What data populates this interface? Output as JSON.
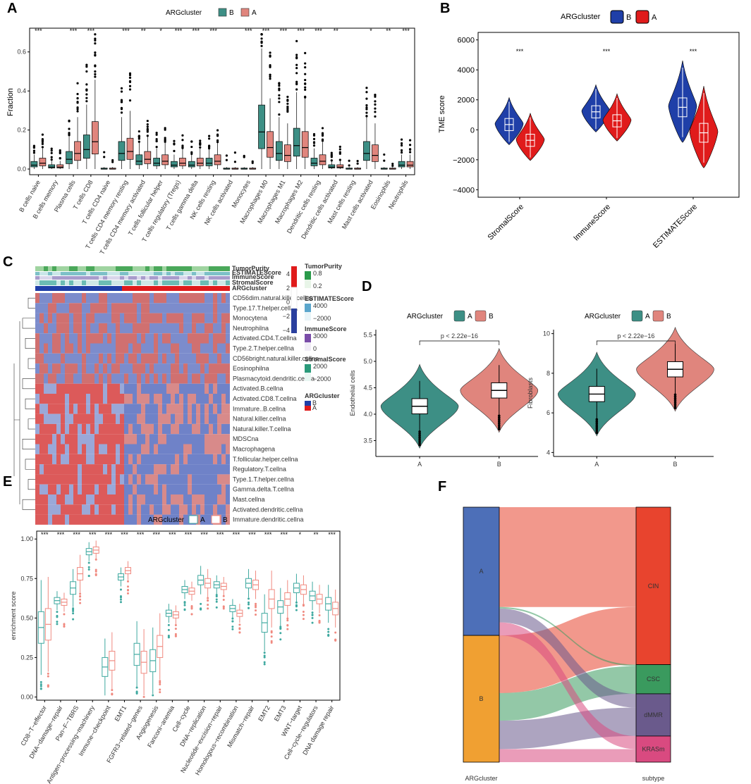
{
  "chart_data": [
    {
      "panel": "A",
      "type": "box",
      "legend_title": "ARGcluster",
      "groups": [
        "B",
        "A"
      ],
      "colors": {
        "B": "#3d8f85",
        "A": "#e0857d"
      },
      "ylabel": "Fraction",
      "ylim": [
        0,
        0.7
      ],
      "yticks": [
        "0.0",
        "0.2",
        "0.4",
        "0.6"
      ],
      "categories": [
        "B cells naive",
        "B cells memory",
        "Plasma cells",
        "T cells CD8",
        "T cells CD4 naive",
        "T cells CD4 memory resting",
        "T cells CD4 memory activated",
        "T cells follicular helper",
        "T cells regulatory (Tregs)",
        "T cells gamma delta",
        "NK cells resting",
        "NK cells activated",
        "Monocytes",
        "Macrophages M0",
        "Macrophages M1",
        "Macrophages M2",
        "Dendritic cells resting",
        "Dendritic cells activated",
        "Mast cells resting",
        "Mast cells activated",
        "Eosinophils",
        "Neutrophils"
      ],
      "significance": [
        "***",
        "",
        "***",
        "***",
        "",
        "***",
        "**",
        "*",
        "***",
        "***",
        "***",
        "",
        "***",
        "***",
        "***",
        "***",
        "***",
        "**",
        "",
        "*",
        "**",
        "***"
      ],
      "medians": {
        "B": [
          0.02,
          0.01,
          0.05,
          0.1,
          0.0,
          0.08,
          0.04,
          0.03,
          0.02,
          0.02,
          0.03,
          0.0,
          0.0,
          0.19,
          0.08,
          0.12,
          0.03,
          0.01,
          0.0,
          0.08,
          0.0,
          0.02
        ],
        "A": [
          0.03,
          0.01,
          0.08,
          0.14,
          0.0,
          0.09,
          0.05,
          0.04,
          0.03,
          0.03,
          0.04,
          0.0,
          0.0,
          0.11,
          0.07,
          0.11,
          0.04,
          0.01,
          0.0,
          0.07,
          0.0,
          0.02
        ]
      }
    },
    {
      "panel": "B",
      "type": "violin",
      "legend_title": "ARGcluster",
      "groups": [
        "B",
        "A"
      ],
      "colors": {
        "B": "#1f3fa8",
        "A": "#e01b1b"
      },
      "ylabel": "TME score",
      "ylim": [
        -4500,
        6500
      ],
      "yticks": [
        "6000",
        "4000",
        "2000",
        "0",
        "−2000",
        "−4000"
      ],
      "categories": [
        "StromalScore",
        "ImmuneScore",
        "ESTIMATEScore"
      ],
      "significance": [
        "***",
        "***",
        "***"
      ],
      "medians": {
        "B": [
          350,
          1200,
          1500
        ],
        "A": [
          -700,
          600,
          -200
        ]
      }
    },
    {
      "panel": "C",
      "type": "heatmap",
      "annotation_rows": [
        "TumorPurity",
        "ESTIMATEScore",
        "ImmuneScore",
        "StromalScore",
        "ARGcluster"
      ],
      "rows": [
        "CD56dim.natural.killer.cellna",
        "Type.17.T.helper.cellna",
        "Monocytena",
        "Neutrophilna",
        "Activated.CD4.T.cellna",
        "Type.2.T.helper.cellna",
        "CD56bright.natural.killer.cellna",
        "Eosinophilna",
        "Plasmacytoid.dendritic.cellna",
        "Activated.B.cellna",
        "Activated.CD8.T.cellna",
        "Immature..B.cellna",
        "Natural.killer.cellna",
        "Natural.killer.T.cellna",
        "MDSCna",
        "Macrophagena",
        "T.follicular.helper.cellna",
        "Regulatory.T.cellna",
        "Type.1.T.helper.cellna",
        "Gamma.delta.T.cellna",
        "Mast.cellna",
        "Activated.dendritic.cellna",
        "Immature.dendritic.cellna"
      ],
      "scale_ticks": [
        "4",
        "2",
        "0",
        "−2",
        "−4"
      ],
      "legends": [
        {
          "title": "TumorPurity",
          "ticks": [
            "0.8",
            "0.2"
          ]
        },
        {
          "title": "ESTIMATEScore",
          "ticks": [
            "4000",
            "−2000"
          ]
        },
        {
          "title": "ImmuneScore",
          "ticks": [
            "3000",
            "0"
          ]
        },
        {
          "title": "StromalScore",
          "ticks": [
            "2000",
            "−2000"
          ]
        },
        {
          "title": "ARGcluster",
          "items": [
            "B",
            "A"
          ]
        }
      ]
    },
    {
      "panel": "D",
      "type": "violin",
      "legend_title": "ARGcluster",
      "groups": [
        "A",
        "B"
      ],
      "colors": {
        "A": "#3d8f85",
        "B": "#e0857d"
      },
      "subplots": [
        {
          "ylabel": "Endothelial cells",
          "ylim": [
            3.2,
            5.6
          ],
          "yticks": [
            "5.5",
            "5.0",
            "4.5",
            "4.0",
            "3.5"
          ],
          "pvalue": "p < 2.22e−16",
          "medians": [
            4.15,
            4.45
          ]
        },
        {
          "ylabel": "Fibroblasts",
          "ylim": [
            3.8,
            10.2
          ],
          "yticks": [
            "10",
            "8",
            "6",
            "4"
          ],
          "pvalue": "p < 2.22e−16",
          "medians": [
            6.95,
            8.2
          ]
        }
      ],
      "categories": [
        "A",
        "B"
      ]
    },
    {
      "panel": "E",
      "type": "box",
      "legend_title": "ARGcluster",
      "groups": [
        "A",
        "B"
      ],
      "colors": {
        "A": "#3fa9a0",
        "B": "#f08a80"
      },
      "ylabel": "enrichment score",
      "ylim": [
        -0.02,
        1.05
      ],
      "yticks": [
        "1.00",
        "0.75",
        "0.50",
        "0.25",
        "0.00"
      ],
      "categories": [
        "CD8−T−effector",
        "DNA−damage−repair",
        "Pan−F−TBRS",
        "Antigen−processing−machinery",
        "Immune−checkpoint",
        "EMT1",
        "FGFR3−related−genes",
        "Angiogenesis",
        "Fanconi−anemia",
        "Cell−cycle",
        "DNA−replication",
        "Nucleotide−excision−repair",
        "Homologous−recombination",
        "Mismatch−repair",
        "EMT2",
        "EMT3",
        "WNT−target",
        "Cell−cycle−regulators",
        "DNA damage repair"
      ],
      "significance": [
        "***",
        "***",
        "***",
        "***",
        "***",
        "***",
        "***",
        "***",
        "***",
        "***",
        "***",
        "***",
        "***",
        "***",
        "***",
        "***",
        "*",
        "**",
        "***"
      ],
      "medians": {
        "A": [
          0.44,
          0.61,
          0.69,
          0.92,
          0.19,
          0.76,
          0.27,
          0.23,
          0.53,
          0.68,
          0.74,
          0.71,
          0.56,
          0.72,
          0.47,
          0.57,
          0.69,
          0.64,
          0.59
        ],
        "B": [
          0.46,
          0.6,
          0.78,
          0.93,
          0.23,
          0.8,
          0.22,
          0.32,
          0.52,
          0.67,
          0.72,
          0.7,
          0.53,
          0.71,
          0.62,
          0.62,
          0.68,
          0.62,
          0.56
        ]
      }
    },
    {
      "panel": "F",
      "type": "sankey",
      "left_axis": "ARGcluster",
      "right_axis": "subtype",
      "left_nodes": [
        {
          "name": "A",
          "color": "#4d6fb8"
        },
        {
          "name": "B",
          "color": "#f0a032"
        }
      ],
      "right_nodes": [
        {
          "name": "CIN",
          "color": "#e8442e"
        },
        {
          "name": "CSC",
          "color": "#3a9a5e"
        },
        {
          "name": "dMMR",
          "color": "#6a5a8c"
        },
        {
          "name": "KRASm",
          "color": "#d94a80"
        }
      ],
      "flows": [
        {
          "from": "A",
          "to": "CIN",
          "value": 130
        },
        {
          "from": "A",
          "to": "CSC",
          "value": 2
        },
        {
          "from": "A",
          "to": "dMMR",
          "value": 18
        },
        {
          "from": "A",
          "to": "KRASm",
          "value": 17
        },
        {
          "from": "B",
          "to": "CIN",
          "value": 75
        },
        {
          "from": "B",
          "to": "CSC",
          "value": 36
        },
        {
          "from": "B",
          "to": "dMMR",
          "value": 37
        },
        {
          "from": "B",
          "to": "KRASm",
          "value": 17
        }
      ]
    }
  ]
}
